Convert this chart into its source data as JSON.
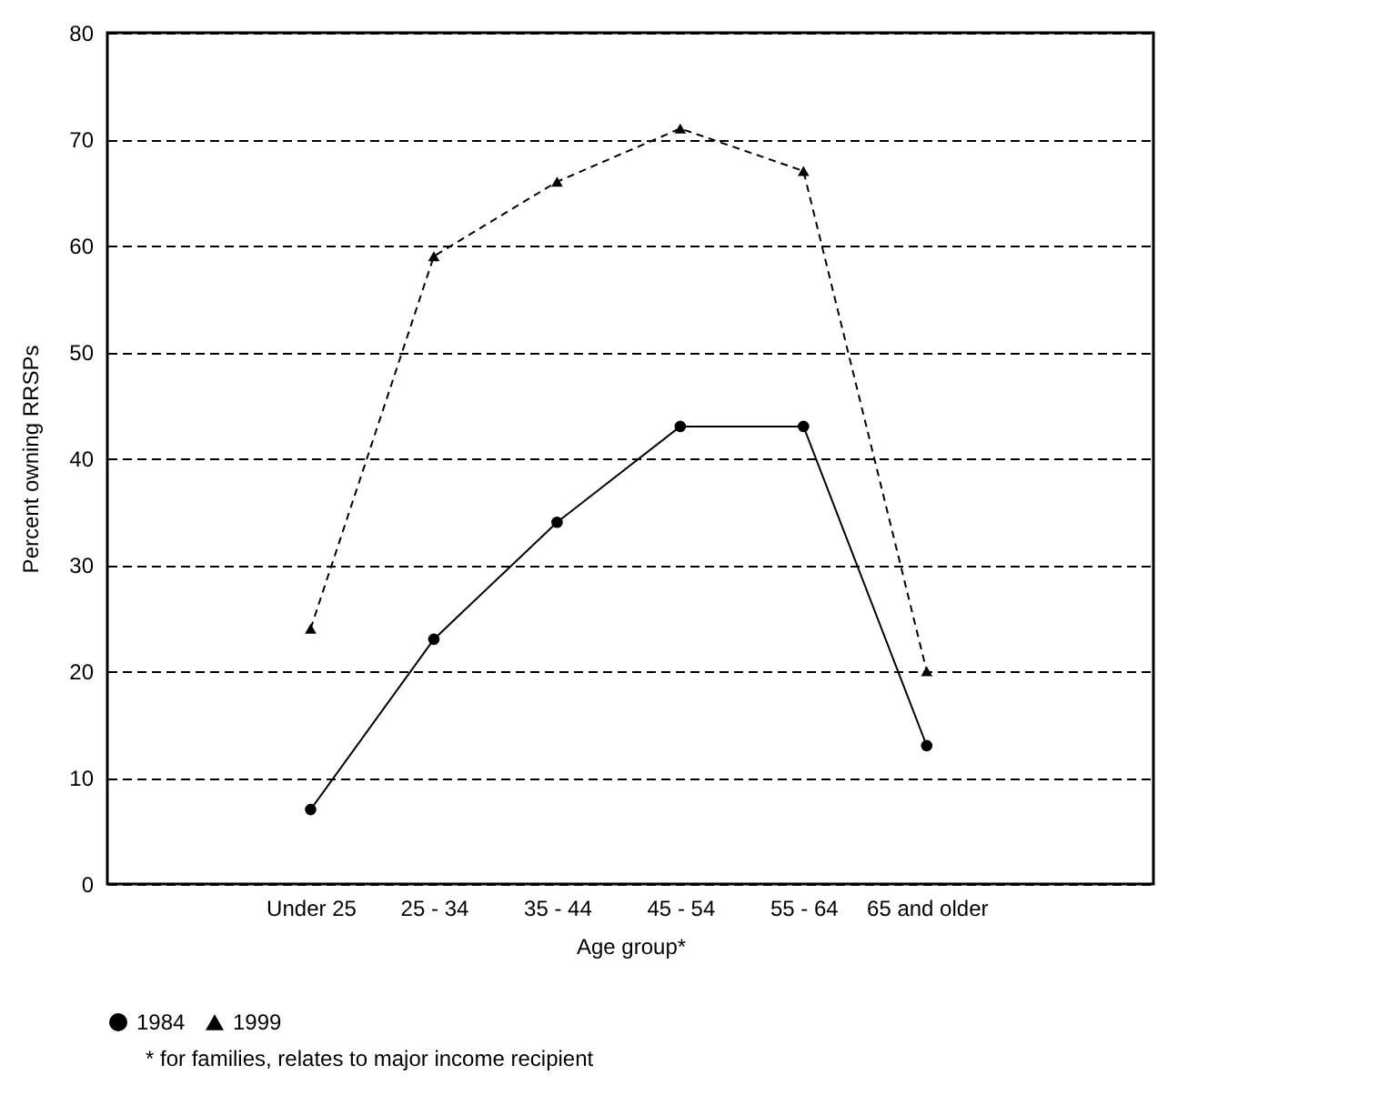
{
  "chart_data": {
    "type": "line",
    "xlabel": "Age group*",
    "ylabel": "Percent owning RRSPs",
    "categories": [
      "Under 25",
      "25 - 34",
      "35 - 44",
      "45 - 54",
      "55 - 64",
      "65 and older"
    ],
    "series": [
      {
        "name": "1984",
        "color": "#000000",
        "marker": "circle",
        "line_style": "solid",
        "values": [
          7,
          23,
          34,
          43,
          43,
          13
        ]
      },
      {
        "name": "1999",
        "color": "#000000",
        "marker": "triangle",
        "line_style": "dashed",
        "values": [
          24,
          59,
          66,
          71,
          67,
          20
        ]
      }
    ],
    "ylim": [
      0,
      80
    ],
    "yticks": [
      0,
      10,
      20,
      30,
      40,
      50,
      60,
      70,
      80
    ],
    "grid": "y",
    "legend": "bottom",
    "annotations": [
      "*  for families, relates to major income recipient"
    ]
  }
}
